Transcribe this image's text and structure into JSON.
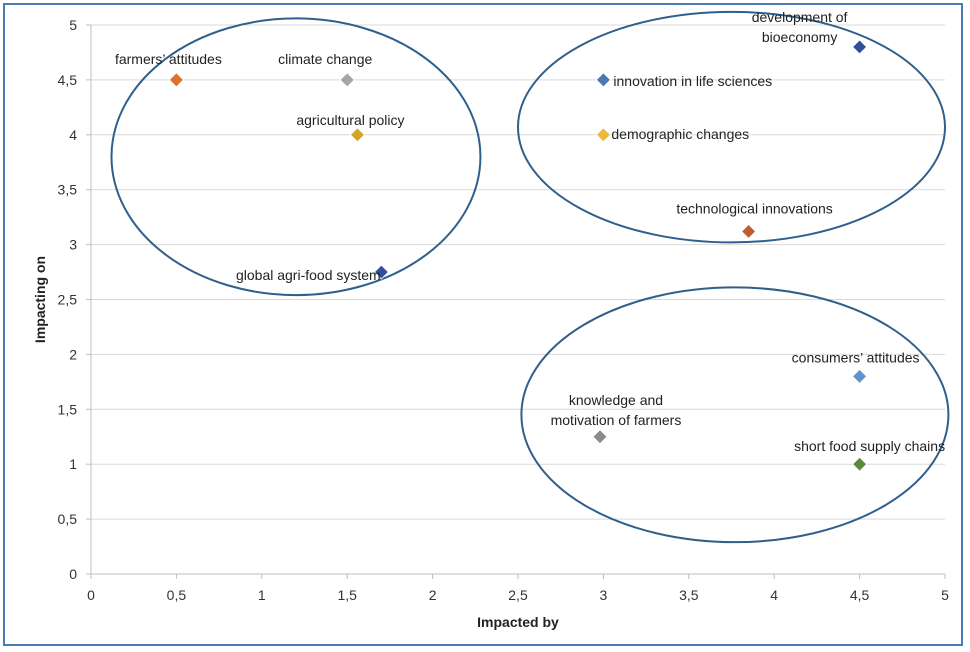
{
  "chart_data": {
    "type": "scatter",
    "title": "",
    "xlabel": "Impacted by",
    "ylabel": "Impacting on",
    "xlim": [
      0,
      5
    ],
    "ylim": [
      0,
      5
    ],
    "x_ticks": [
      "0",
      "0,5",
      "1",
      "1,5",
      "2",
      "2,5",
      "3",
      "3,5",
      "4",
      "4,5",
      "5"
    ],
    "y_ticks": [
      "0",
      "0,5",
      "1",
      "1,5",
      "2",
      "2,5",
      "3",
      "3,5",
      "4",
      "4,5",
      "5"
    ],
    "grid": "horizontal",
    "legend": "none",
    "points": [
      {
        "label": "farmers’ attitudes",
        "x": 0.5,
        "y": 4.5,
        "color": "#e0712b"
      },
      {
        "label": "climate change",
        "x": 1.5,
        "y": 4.5,
        "color": "#a5a5a5"
      },
      {
        "label": "agricultural policy",
        "x": 1.56,
        "y": 4.0,
        "color": "#d4a520"
      },
      {
        "label": "global agri-food system",
        "x": 1.7,
        "y": 2.75,
        "color": "#30509c"
      },
      {
        "label": "development of bioeconomy",
        "label_lines": [
          "development of",
          "bioeconomy"
        ],
        "x": 4.5,
        "y": 4.8,
        "color": "#30509c"
      },
      {
        "label": "innovation in life sciences",
        "x": 3.0,
        "y": 4.5,
        "color": "#4a7ab3"
      },
      {
        "label": "demographic changes",
        "x": 3.0,
        "y": 4.0,
        "color": "#f0b83a"
      },
      {
        "label": "technological innovations",
        "x": 3.85,
        "y": 3.12,
        "color": "#bf5e2c"
      },
      {
        "label": "consumers’ attitudes",
        "x": 4.5,
        "y": 1.8,
        "color": "#5f93cf"
      },
      {
        "label": "knowledge and motivation of farmers",
        "label_lines": [
          "knowledge and",
          "motivation of farmers"
        ],
        "x": 2.98,
        "y": 1.25,
        "color": "#8c8c8c"
      },
      {
        "label": "short food supply chains",
        "x": 4.5,
        "y": 1.0,
        "color": "#5a8a3c"
      }
    ],
    "clusters": [
      {
        "cx": 1.2,
        "cy": 3.8,
        "rx": 1.08,
        "ry": 1.26
      },
      {
        "cx": 3.75,
        "cy": 4.07,
        "rx": 1.25,
        "ry": 1.05
      },
      {
        "cx": 3.77,
        "cy": 1.45,
        "rx": 1.25,
        "ry": 1.16
      }
    ],
    "colors": {
      "ellipse": "#2f5f8c",
      "frame": "#4a7bb5"
    }
  }
}
